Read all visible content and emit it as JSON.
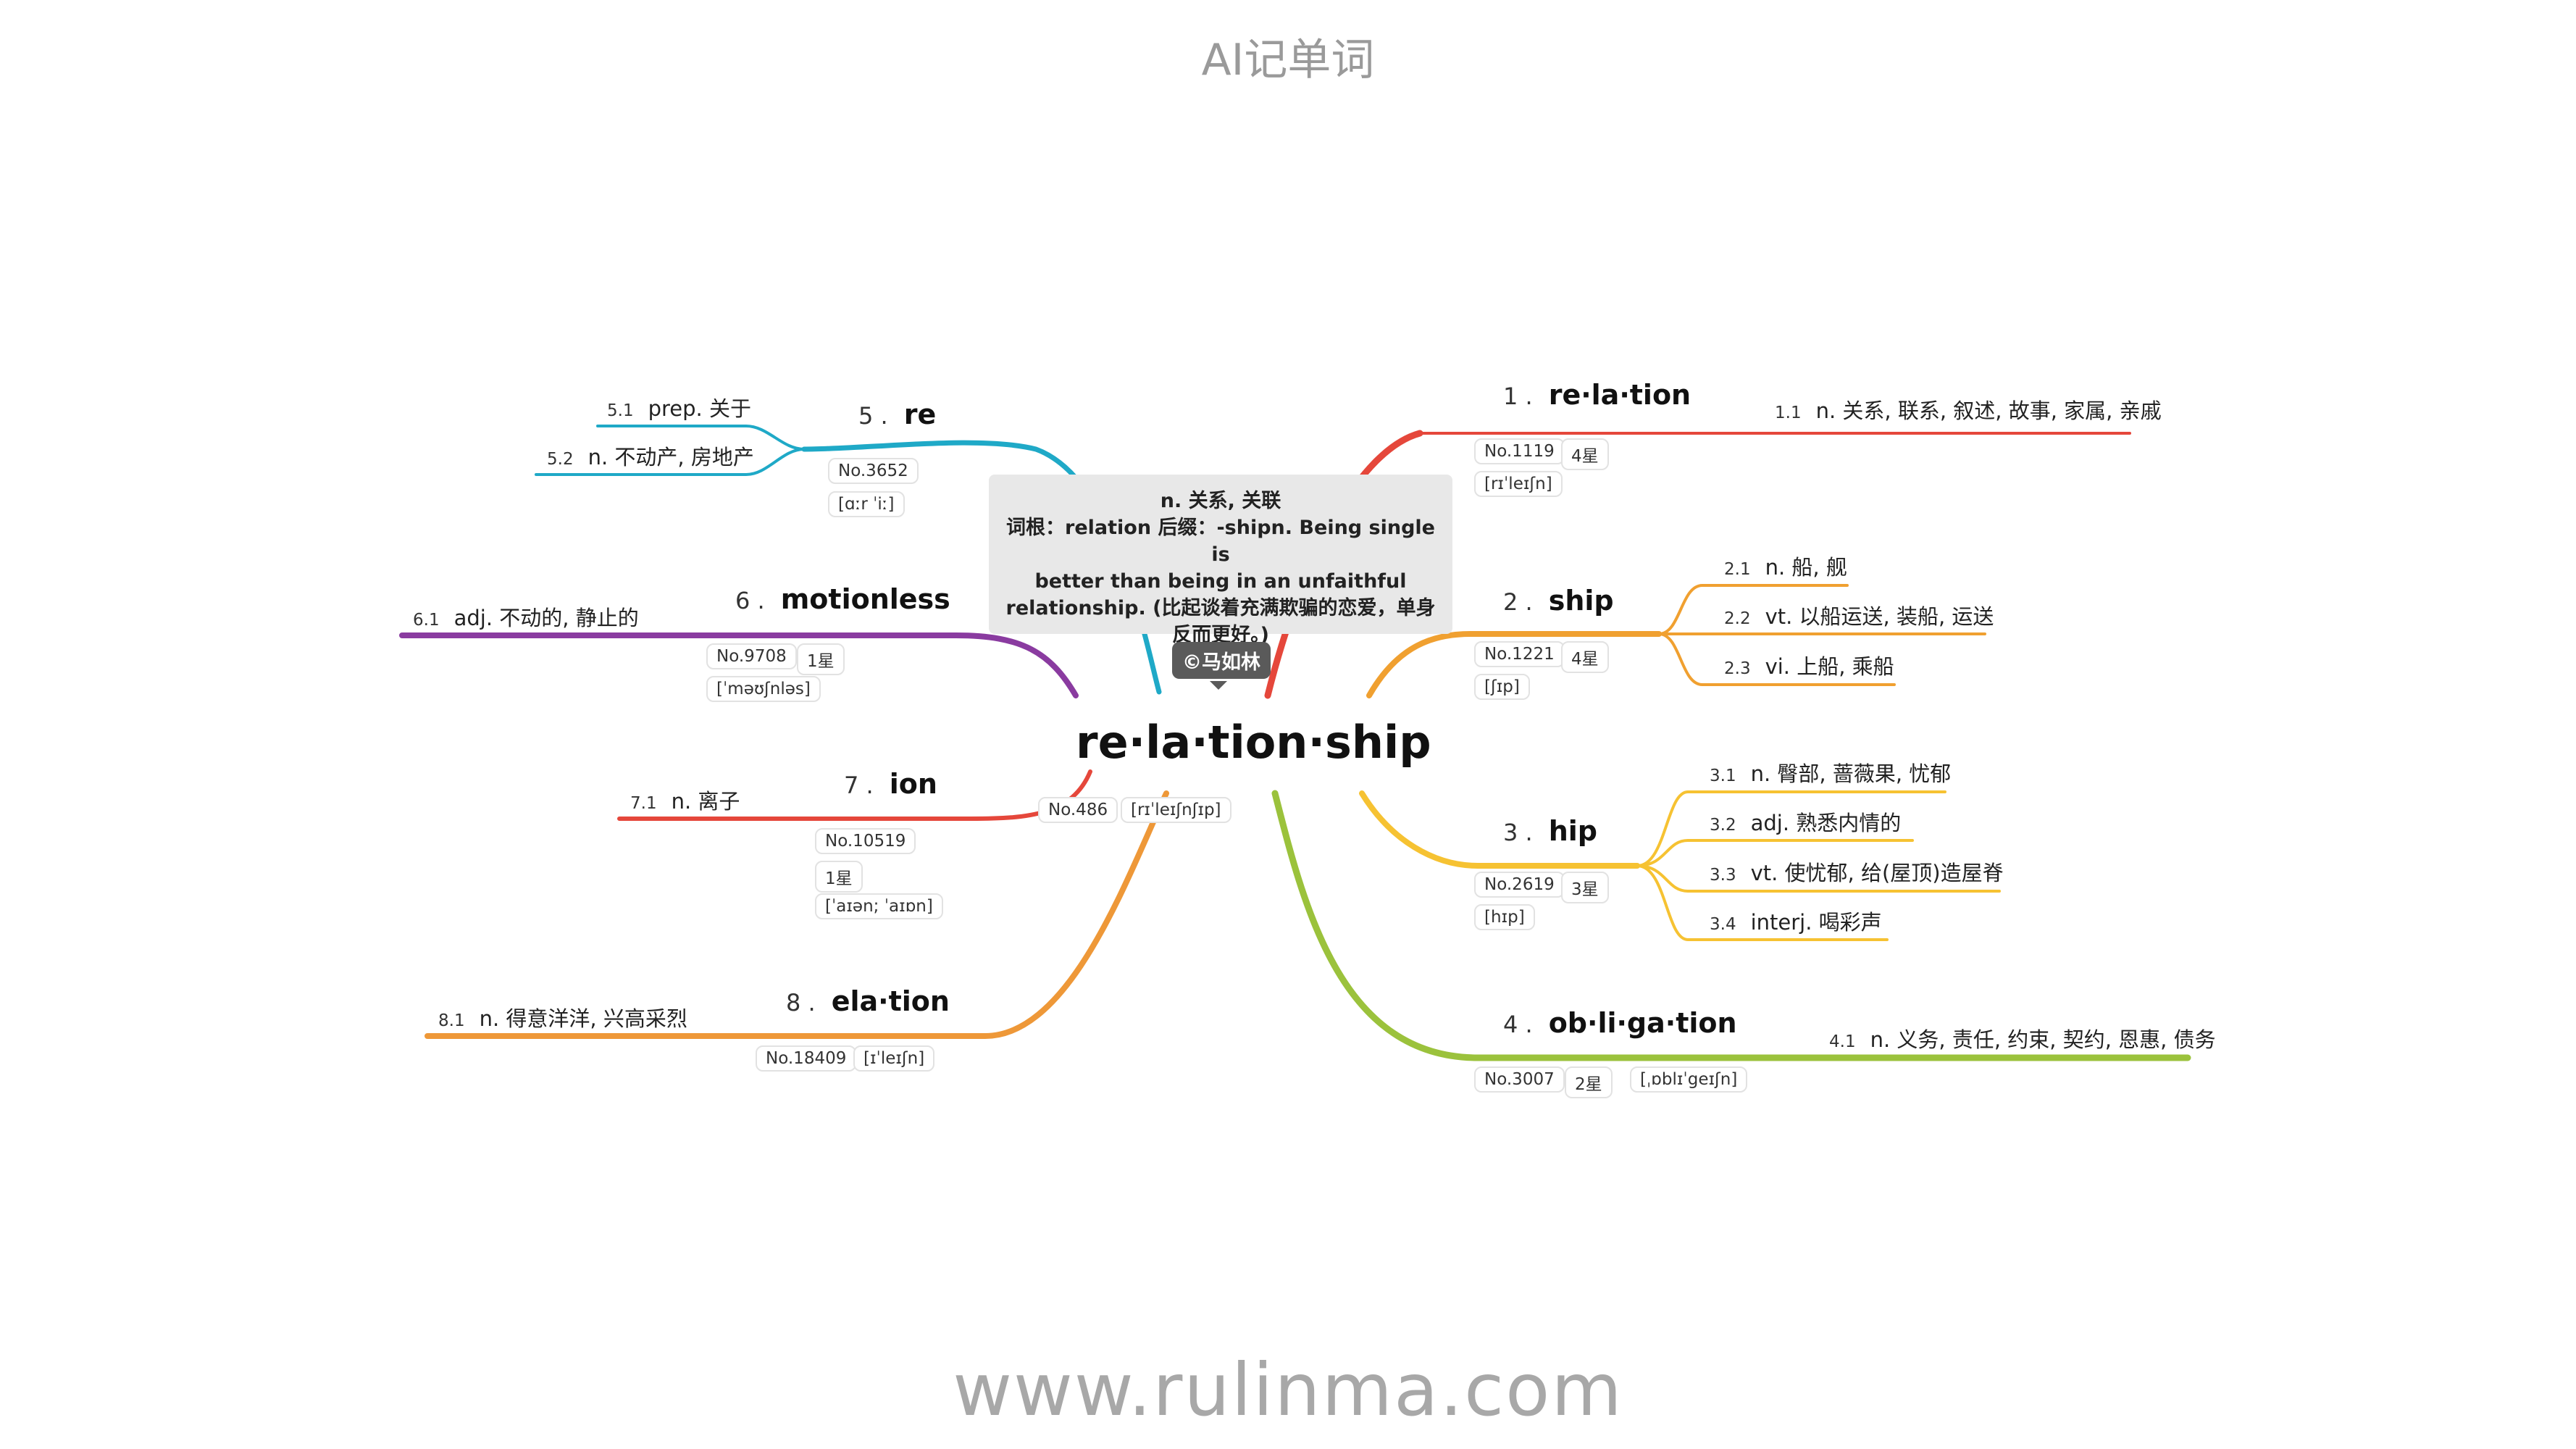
{
  "header": {
    "title": "AI记单词"
  },
  "footer": {
    "url": "www.rulinma.com"
  },
  "colors": {
    "red": "#e5473b",
    "orange": "#f0a030",
    "yellow": "#f6c232",
    "green": "#9bc23c",
    "cyan": "#1fa9c7",
    "purple": "#8a3ba0",
    "darkorange": "#ee9838"
  },
  "root": {
    "word": "re·la·tion·ship",
    "no": "No.486",
    "phonetic": "[rɪˈleɪʃnʃɪp]"
  },
  "note": {
    "line1": "n. 关系, 关联",
    "line2": "词根：relation 后缀：-shipn. Being single is",
    "line3": "better than being in an unfaithful",
    "line4": "relationship. (比起谈着充满欺骗的恋爱，单身",
    "line5": "反而更好。)"
  },
  "author": "©马如林",
  "branches": [
    {
      "index": "1 .",
      "word": "re·la·tion",
      "no": "No.1119",
      "stars": "4星",
      "phonetic": "[rɪˈleɪʃn]",
      "defs": [
        {
          "num": "1.1",
          "text": "n. 关系, 联系, 叙述, 故事, 家属, 亲戚"
        }
      ]
    },
    {
      "index": "2 .",
      "word": "ship",
      "no": "No.1221",
      "stars": "4星",
      "phonetic": "[ʃɪp]",
      "defs": [
        {
          "num": "2.1",
          "text": "n. 船, 舰"
        },
        {
          "num": "2.2",
          "text": "vt. 以船运送, 装船, 运送"
        },
        {
          "num": "2.3",
          "text": "vi. 上船, 乘船"
        }
      ]
    },
    {
      "index": "3 .",
      "word": "hip",
      "no": "No.2619",
      "stars": "3星",
      "phonetic": "[hɪp]",
      "defs": [
        {
          "num": "3.1",
          "text": "n. 臀部, 蔷薇果, 忧郁"
        },
        {
          "num": "3.2",
          "text": "adj. 熟悉内情的"
        },
        {
          "num": "3.3",
          "text": "vt. 使忧郁, 给(屋顶)造屋脊"
        },
        {
          "num": "3.4",
          "text": "interj. 喝彩声"
        }
      ]
    },
    {
      "index": "4 .",
      "word": "ob·li·ga·tion",
      "no": "No.3007",
      "stars": "2星",
      "phonetic": "[ˌɒblɪˈgeɪʃn]",
      "defs": [
        {
          "num": "4.1",
          "text": "n. 义务, 责任, 约束, 契约, 恩惠, 债务"
        }
      ]
    },
    {
      "index": "5 .",
      "word": "re",
      "no": "No.3652",
      "phonetic": "[ɑːr ˈiː]",
      "defs": [
        {
          "num": "5.1",
          "text": "prep. 关于"
        },
        {
          "num": "5.2",
          "text": "n. 不动产, 房地产"
        }
      ]
    },
    {
      "index": "6 .",
      "word": "motionless",
      "no": "No.9708",
      "stars": "1星",
      "phonetic": "[ˈməʊʃnləs]",
      "defs": [
        {
          "num": "6.1",
          "text": "adj. 不动的, 静止的"
        }
      ]
    },
    {
      "index": "7 .",
      "word": "ion",
      "no": "No.10519",
      "stars": "1星",
      "phonetic": "[ˈaɪən; ˈaɪɒn]",
      "defs": [
        {
          "num": "7.1",
          "text": "n. 离子"
        }
      ]
    },
    {
      "index": "8 .",
      "word": "ela·tion",
      "no": "No.18409",
      "phonetic": "[ɪˈleɪʃn]",
      "defs": [
        {
          "num": "8.1",
          "text": "n. 得意洋洋, 兴高采烈"
        }
      ]
    }
  ]
}
